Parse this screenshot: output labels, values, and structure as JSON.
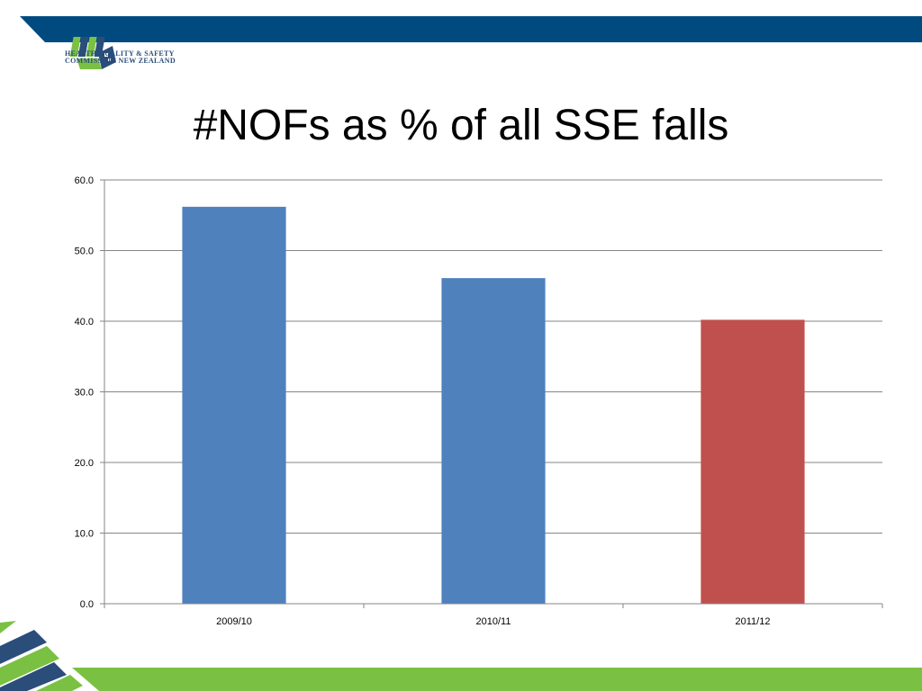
{
  "header": {
    "org_line1": "HEALTH QUALITY & SAFETY",
    "org_line2": "COMMISSION NEW ZEALAND"
  },
  "slide": {
    "title": "#NOFs as % of all SSE falls"
  },
  "colors": {
    "band": "#004a80",
    "green": "#7ac143",
    "bar_blue": "#4f81bd",
    "bar_red": "#c0504d"
  },
  "chart_data": {
    "type": "bar",
    "title": "",
    "categories": [
      "2009/10",
      "2010/11",
      "2011/12"
    ],
    "values": [
      56.2,
      46.1,
      40.2
    ],
    "bar_colors": [
      "#4f81bd",
      "#4f81bd",
      "#c0504d"
    ],
    "ylim": [
      0,
      60
    ],
    "yticks": [
      "0.0",
      "10.0",
      "20.0",
      "30.0",
      "40.0",
      "50.0",
      "60.0"
    ],
    "grid": true,
    "legend": "none",
    "xlabel": "",
    "ylabel": ""
  }
}
